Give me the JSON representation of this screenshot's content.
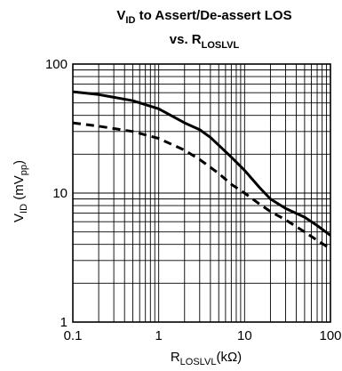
{
  "chart_data": {
    "type": "line",
    "title_line1": {
      "main": "V",
      "sub": "ID",
      "rest": " to Assert/De-assert LOS"
    },
    "title_line2": {
      "main": "vs. R",
      "sub": "LOSLVL"
    },
    "xlabel": {
      "main": "R",
      "sub": "LOSLVL",
      "rest": "(kΩ)"
    },
    "ylabel": {
      "main": "V",
      "sub": "ID",
      "mid": " (mV",
      "sub2": "pp",
      "end": ")"
    },
    "x_scale": "log",
    "y_scale": "log",
    "xlim": [
      0.1,
      100
    ],
    "ylim": [
      1,
      100
    ],
    "x_ticks": [
      {
        "value": 0.1,
        "label": "0.1"
      },
      {
        "value": 1,
        "label": "1"
      },
      {
        "value": 10,
        "label": "10"
      },
      {
        "value": 100,
        "label": "100"
      }
    ],
    "y_ticks": [
      {
        "value": 1,
        "label": "1"
      },
      {
        "value": 10,
        "label": "10"
      },
      {
        "value": 100,
        "label": "100"
      }
    ],
    "grid": true,
    "series": [
      {
        "style": "solid",
        "color": "#000000",
        "x": [
          0.1,
          0.2,
          0.5,
          1,
          2,
          3,
          4,
          5,
          7,
          10,
          15,
          20,
          30,
          50,
          70,
          100
        ],
        "y": [
          61,
          58,
          52,
          45,
          35,
          31,
          27,
          23.5,
          19,
          15,
          11,
          9,
          7.6,
          6.5,
          5.6,
          4.7
        ]
      },
      {
        "style": "dashed",
        "color": "#000000",
        "x": [
          0.1,
          0.2,
          0.5,
          1,
          2,
          3,
          5,
          7,
          10,
          15,
          20,
          30,
          50,
          70,
          100
        ],
        "y": [
          35,
          33,
          30,
          26.5,
          21.5,
          18.2,
          14.2,
          11.7,
          10,
          8.2,
          7.2,
          6.2,
          5,
          4.3,
          3.7
        ]
      }
    ]
  }
}
